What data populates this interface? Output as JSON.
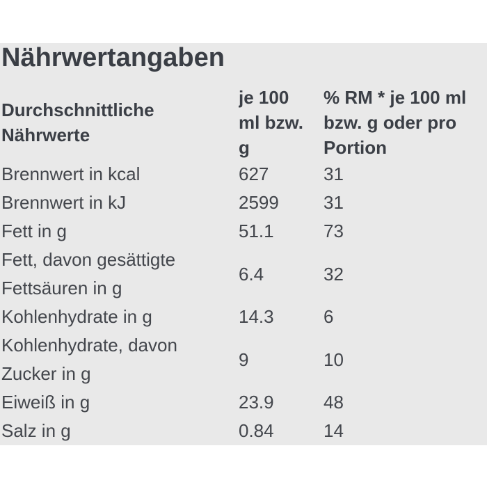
{
  "colors": {
    "page_background": "#ffffff",
    "section_background": "#e9e9e9",
    "title_color": "#3a3e45",
    "header_text_color": "#3b3f46",
    "body_text_color": "#43464c"
  },
  "title": "Nährwertangaben",
  "table": {
    "columns": [
      {
        "label": "Durchschnittliche\nNährwerte"
      },
      {
        "label": "je 100\nml bzw.\ng"
      },
      {
        "label": "% RM * je 100 ml\nbzw. g oder pro\nPortion"
      }
    ],
    "rows": [
      {
        "label": "Brennwert in kcal",
        "per100": "627",
        "rm": "31"
      },
      {
        "label": "Brennwert in kJ",
        "per100": "2599",
        "rm": "31"
      },
      {
        "label": "Fett in g",
        "per100": "51.1",
        "rm": "73"
      },
      {
        "label": "Fett, davon gesättigte\nFettsäuren in g",
        "per100": "6.4",
        "rm": "32"
      },
      {
        "label": "Kohlenhydrate in g",
        "per100": "14.3",
        "rm": "6"
      },
      {
        "label": "Kohlenhydrate, davon\nZucker in g",
        "per100": "9",
        "rm": "10"
      },
      {
        "label": "Eiweiß in g",
        "per100": "23.9",
        "rm": "48"
      },
      {
        "label": "Salz in g",
        "per100": "0.84",
        "rm": "14"
      }
    ]
  }
}
